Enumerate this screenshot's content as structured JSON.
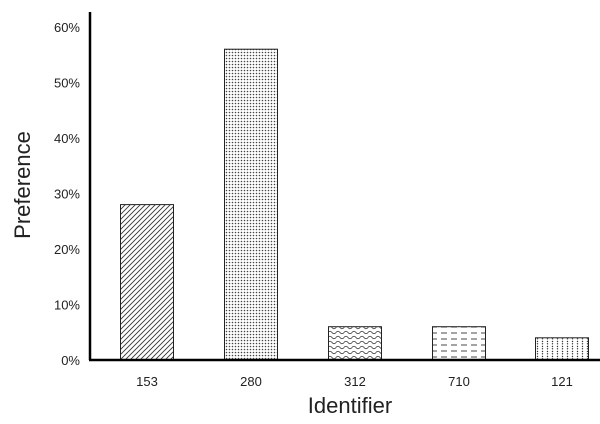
{
  "chart_data": {
    "type": "bar",
    "categories": [
      "153",
      "280",
      "312",
      "710",
      "121"
    ],
    "values": [
      28,
      56,
      6,
      6,
      4
    ],
    "value_unit": "%",
    "ylim": [
      0,
      60
    ],
    "yticks": [
      0,
      10,
      20,
      30,
      40,
      50,
      60
    ],
    "ytick_labels": [
      "0%",
      "10%",
      "20%",
      "30%",
      "40%",
      "50%",
      "60%"
    ],
    "xlabel": "Identifier",
    "ylabel": "Preference",
    "grid": false,
    "legend": "none",
    "bar_patterns": [
      "diagonal-hatch",
      "fine-dots",
      "wavy-lines",
      "dashed-lines",
      "vertical-dots"
    ],
    "colors": {
      "bar_outline": "#222222",
      "axis": "#000000",
      "pattern": "#333333",
      "background": "#ffffff"
    }
  }
}
